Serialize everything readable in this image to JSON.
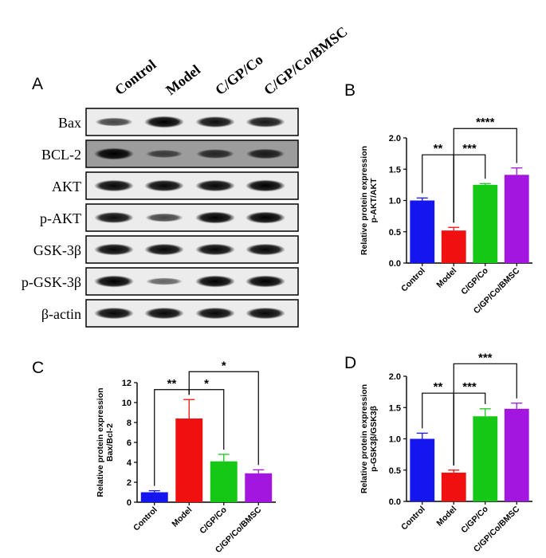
{
  "panel_labels": [
    "A",
    "B",
    "C",
    "D"
  ],
  "western_blot": {
    "groups": [
      "Control",
      "Model",
      "C/GP/Co",
      "C/GP/Co/BMSC"
    ],
    "proteins": [
      {
        "name": "Bax",
        "intensity": [
          0.55,
          1.0,
          0.9,
          0.85
        ],
        "bg": "light"
      },
      {
        "name": "BCL-2",
        "intensity": [
          1.0,
          0.45,
          0.65,
          0.75
        ],
        "bg": "dark"
      },
      {
        "name": "AKT",
        "intensity": [
          0.95,
          0.95,
          0.95,
          1.0
        ],
        "bg": "light"
      },
      {
        "name": "p-AKT",
        "intensity": [
          0.9,
          0.55,
          1.0,
          1.0
        ],
        "bg": "light"
      },
      {
        "name": "GSK-3β",
        "intensity": [
          0.95,
          0.95,
          0.95,
          0.95
        ],
        "bg": "light"
      },
      {
        "name": "p-GSK-3β",
        "intensity": [
          1.0,
          0.35,
          1.0,
          1.0
        ],
        "bg": "light"
      },
      {
        "name": "β-actin",
        "intensity": [
          0.95,
          0.95,
          0.95,
          0.95
        ],
        "bg": "light"
      }
    ]
  },
  "chart_data": [
    {
      "panel": "B",
      "type": "bar",
      "categories": [
        "Control",
        "Model",
        "C/GP/Co",
        "C/GP/Co/BMSC"
      ],
      "values": [
        1.0,
        0.52,
        1.25,
        1.41
      ],
      "errors": [
        0.04,
        0.05,
        0.02,
        0.11
      ],
      "colors": [
        "#1515f0",
        "#f01010",
        "#16c816",
        "#a316e0"
      ],
      "ylabel_lines": [
        "Relative protein expression",
        "p-AKT/AKT"
      ],
      "ylim": [
        0,
        2.0
      ],
      "yticks": [
        0.0,
        0.5,
        1.0,
        1.5,
        2.0
      ],
      "ytick_labels": [
        "0.0",
        "0.5",
        "1.0",
        "1.5",
        "2.0"
      ],
      "significance": [
        {
          "from": 0,
          "to": 1,
          "label": "**",
          "y": 1.73
        },
        {
          "from": 1,
          "to": 2,
          "label": "***",
          "y": 1.73
        },
        {
          "from": 1,
          "to": 3,
          "label": "****",
          "y": 2.15
        }
      ]
    },
    {
      "panel": "C",
      "type": "bar",
      "categories": [
        "Control",
        "Model",
        "C/GP/Co",
        "C/GP/Co/BMSC"
      ],
      "values": [
        1.0,
        8.4,
        4.1,
        2.9
      ],
      "errors": [
        0.15,
        1.9,
        0.7,
        0.35
      ],
      "colors": [
        "#1515f0",
        "#f01010",
        "#16c816",
        "#a316e0"
      ],
      "ylabel_lines": [
        "Relative protein expression",
        "Bax/Bcl-2"
      ],
      "ylim": [
        0,
        12
      ],
      "yticks": [
        0,
        2,
        4,
        6,
        8,
        10,
        12
      ],
      "ytick_labels": [
        "0",
        "2",
        "4",
        "6",
        "8",
        "10",
        "12"
      ],
      "significance": [
        {
          "from": 0,
          "to": 1,
          "label": "**",
          "y": 11.3
        },
        {
          "from": 1,
          "to": 2,
          "label": "*",
          "y": 11.3
        },
        {
          "from": 1,
          "to": 3,
          "label": "*",
          "y": 13.1
        }
      ]
    },
    {
      "panel": "D",
      "type": "bar",
      "categories": [
        "Control",
        "Model",
        "C/GP/Co",
        "C/GP/Co/BMSC"
      ],
      "values": [
        1.0,
        0.46,
        1.36,
        1.48
      ],
      "errors": [
        0.09,
        0.04,
        0.12,
        0.09
      ],
      "colors": [
        "#1515f0",
        "#f01010",
        "#16c816",
        "#a316e0"
      ],
      "ylabel_lines": [
        "Relative protein expression",
        "p-GSK3β/GSK3β"
      ],
      "ylim": [
        0,
        2.0
      ],
      "yticks": [
        0.0,
        0.5,
        1.0,
        1.5,
        2.0
      ],
      "ytick_labels": [
        "0.0",
        "0.5",
        "1.0",
        "1.5",
        "2.0"
      ],
      "significance": [
        {
          "from": 0,
          "to": 1,
          "label": "**",
          "y": 1.73
        },
        {
          "from": 1,
          "to": 2,
          "label": "***",
          "y": 1.73
        },
        {
          "from": 1,
          "to": 3,
          "label": "***",
          "y": 2.2
        }
      ]
    }
  ]
}
